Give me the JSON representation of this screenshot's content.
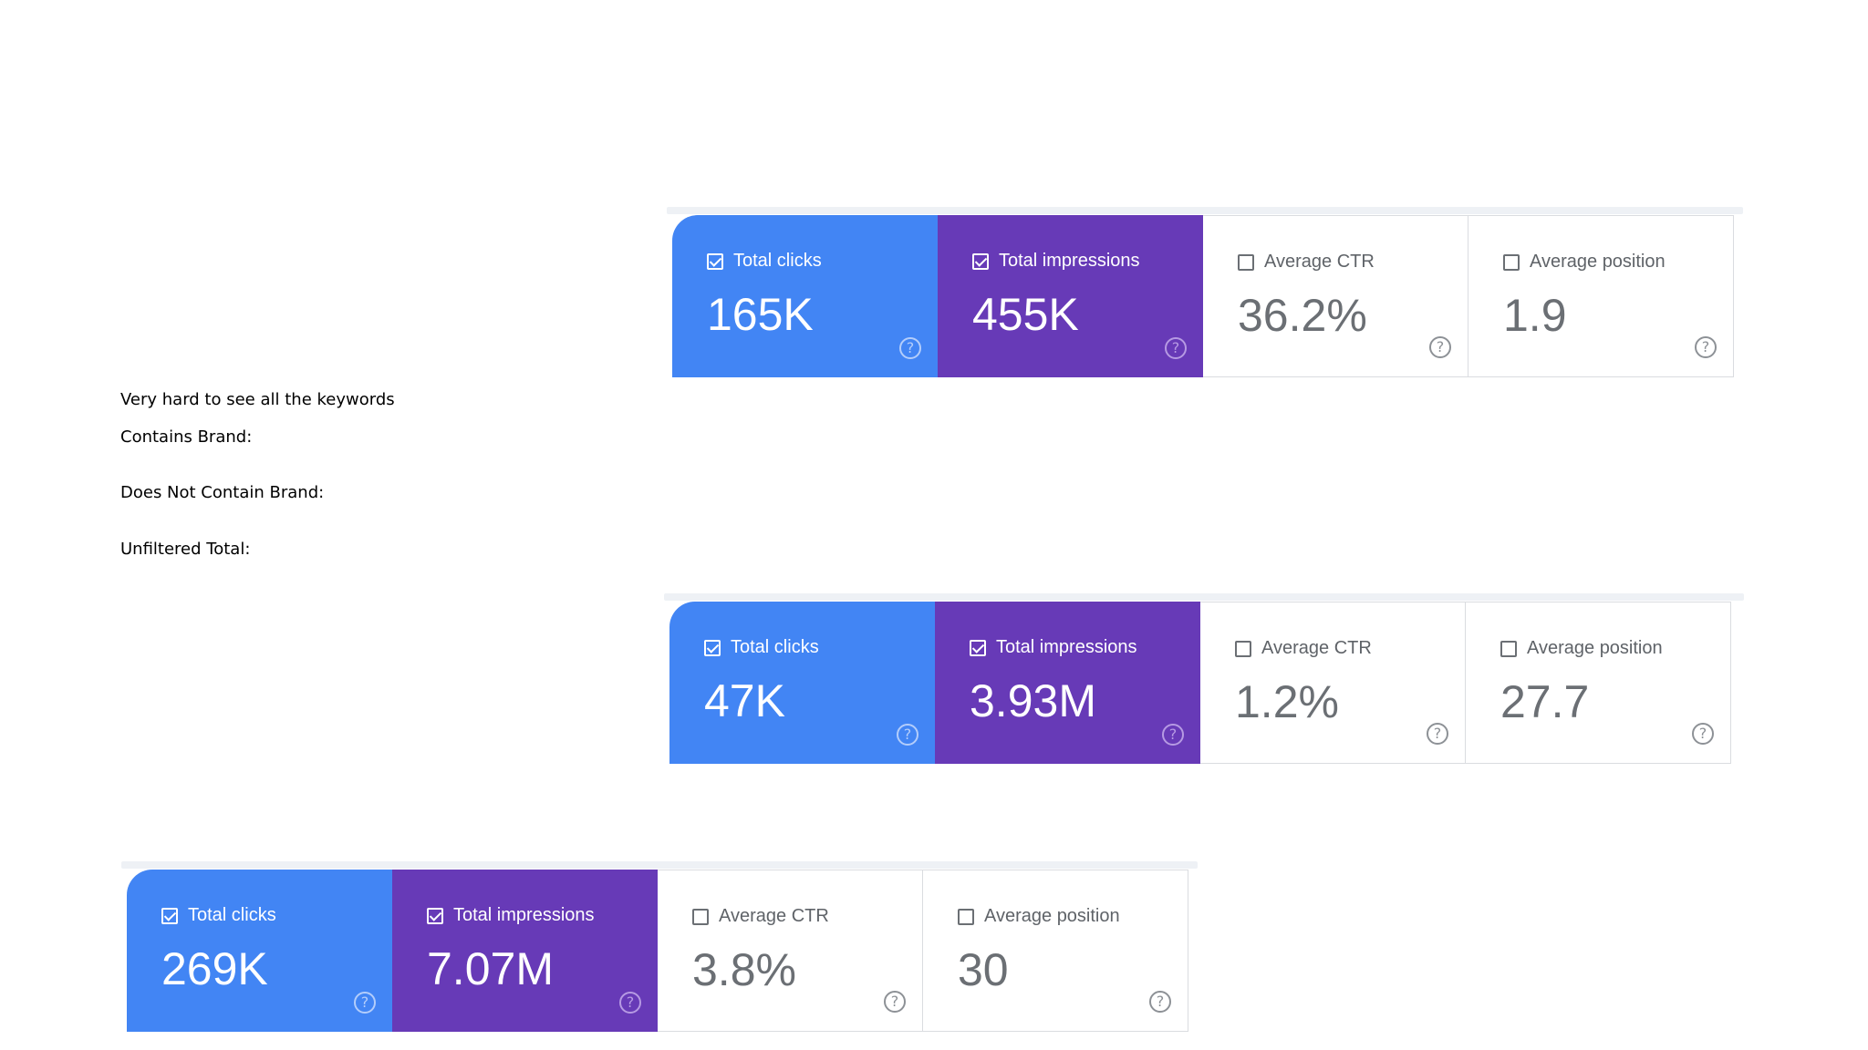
{
  "notes": {
    "line1": "Very hard to see all the keywords",
    "line2": "Contains Brand:",
    "line3": "Does Not Contain Brand:",
    "line4": "Unfiltered Total:"
  },
  "icons": {
    "checkbox_checked": "checkbox-checked-icon",
    "checkbox_unchecked": "checkbox-unchecked-icon",
    "help": "question-circle-icon",
    "help_glyph": "?"
  },
  "colors": {
    "clicks": "#4285f4",
    "impressions": "#673ab7",
    "neutral_text": "#5f6368"
  },
  "groups": [
    {
      "metrics": [
        {
          "label": "Total clicks",
          "value": "165K",
          "checked": true
        },
        {
          "label": "Total impressions",
          "value": "455K",
          "checked": true
        },
        {
          "label": "Average CTR",
          "value": "36.2%",
          "checked": false
        },
        {
          "label": "Average position",
          "value": "1.9",
          "checked": false
        }
      ]
    },
    {
      "metrics": [
        {
          "label": "Total clicks",
          "value": "47K",
          "checked": true
        },
        {
          "label": "Total impressions",
          "value": "3.93M",
          "checked": true
        },
        {
          "label": "Average CTR",
          "value": "1.2%",
          "checked": false
        },
        {
          "label": "Average position",
          "value": "27.7",
          "checked": false
        }
      ]
    },
    {
      "metrics": [
        {
          "label": "Total clicks",
          "value": "269K",
          "checked": true
        },
        {
          "label": "Total impressions",
          "value": "7.07M",
          "checked": true
        },
        {
          "label": "Average CTR",
          "value": "3.8%",
          "checked": false
        },
        {
          "label": "Average position",
          "value": "30",
          "checked": false
        }
      ]
    }
  ]
}
